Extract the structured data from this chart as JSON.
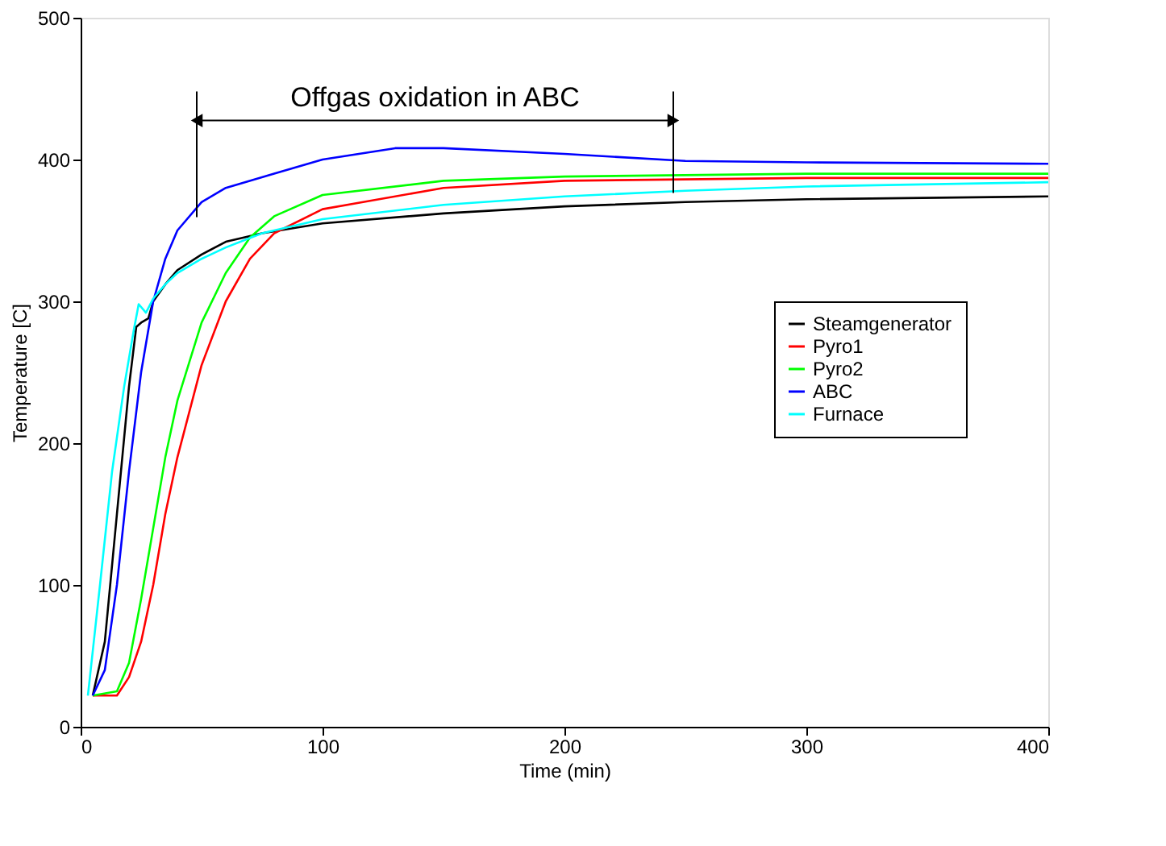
{
  "chart_data": {
    "type": "line",
    "xlabel": "Time (min)",
    "ylabel": "Temperature [C]",
    "xlim": [
      0,
      400
    ],
    "ylim": [
      0,
      500
    ],
    "xticks": [
      0,
      100,
      200,
      300,
      400
    ],
    "yticks": [
      0,
      100,
      200,
      300,
      400,
      500
    ],
    "grid": false,
    "legend": "right",
    "marker": "none",
    "line_style": "solid",
    "ref_lines": [
      {
        "axis": "x",
        "value": 48,
        "color": "#000000"
      },
      {
        "axis": "x",
        "value": 245,
        "color": "#000000"
      }
    ],
    "annotations": [
      "Offgas oxidation in ABC"
    ],
    "series": [
      {
        "name": "Steamgenerator",
        "color": "#000000",
        "x": [
          5,
          10,
          15,
          20,
          23,
          25,
          28,
          30,
          35,
          40,
          50,
          60,
          75,
          100,
          150,
          200,
          250,
          300,
          400
        ],
        "values": [
          22,
          60,
          150,
          240,
          282,
          285,
          288,
          300,
          312,
          322,
          333,
          342,
          348,
          355,
          362,
          367,
          370,
          372,
          374
        ]
      },
      {
        "name": "Pyro1",
        "color": "#ff0000",
        "x": [
          5,
          15,
          20,
          25,
          30,
          35,
          40,
          50,
          60,
          70,
          80,
          100,
          150,
          200,
          300,
          400
        ],
        "values": [
          22,
          22,
          35,
          60,
          100,
          150,
          190,
          255,
          300,
          330,
          348,
          365,
          380,
          385,
          387,
          387
        ]
      },
      {
        "name": "Pyro2",
        "color": "#00ff00",
        "x": [
          5,
          15,
          20,
          25,
          30,
          35,
          40,
          50,
          60,
          70,
          80,
          100,
          150,
          200,
          300,
          400
        ],
        "values": [
          22,
          25,
          45,
          90,
          140,
          190,
          230,
          285,
          320,
          345,
          360,
          375,
          385,
          388,
          390,
          390
        ]
      },
      {
        "name": "ABC",
        "color": "#0000ff",
        "x": [
          5,
          10,
          15,
          20,
          25,
          30,
          35,
          40,
          50,
          60,
          80,
          100,
          130,
          150,
          200,
          250,
          300,
          400
        ],
        "values": [
          22,
          40,
          100,
          180,
          250,
          300,
          330,
          350,
          370,
          380,
          390,
          400,
          408,
          408,
          404,
          399,
          398,
          397
        ]
      },
      {
        "name": "Furnace",
        "color": "#00ffff",
        "x": [
          3,
          8,
          13,
          18,
          22,
          24,
          27,
          30,
          35,
          40,
          50,
          60,
          75,
          100,
          150,
          200,
          250,
          300,
          400
        ],
        "values": [
          22,
          100,
          180,
          240,
          280,
          298,
          292,
          302,
          312,
          320,
          330,
          338,
          348,
          358,
          368,
          374,
          378,
          381,
          384
        ]
      }
    ]
  }
}
